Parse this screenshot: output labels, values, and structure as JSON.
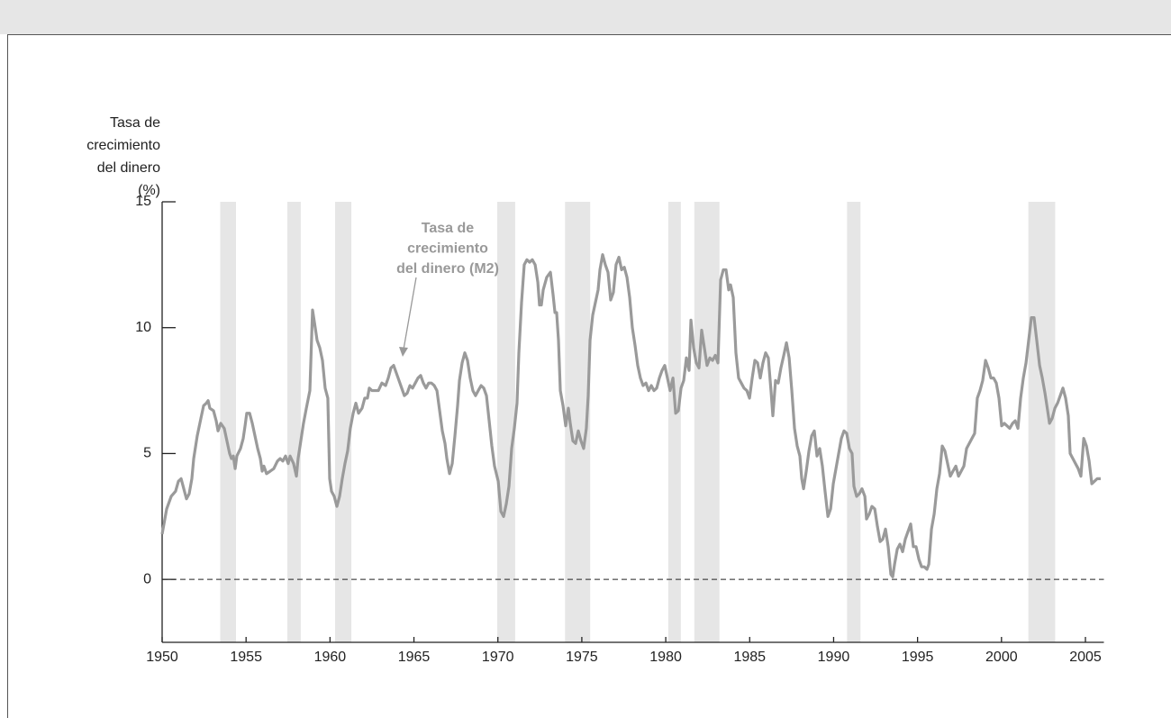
{
  "chart_data": {
    "type": "line",
    "ylabel": [
      "Tasa de",
      "crecimiento",
      "del dinero",
      "(%)"
    ],
    "annotation": [
      "Tasa de",
      "crecimiento",
      "del dinero (M2)"
    ],
    "color": "#9a9a9a",
    "shade_color": "#e6e6e6",
    "shaded_ranges": [
      [
        1953.46,
        1954.4
      ],
      [
        1957.46,
        1958.26
      ],
      [
        1960.3,
        1961.27
      ],
      [
        1969.96,
        1971.03
      ],
      [
        1974.0,
        1975.5
      ],
      [
        1980.15,
        1980.9
      ],
      [
        1981.7,
        1983.2
      ],
      [
        1990.8,
        1991.6
      ],
      [
        2001.6,
        2003.2
      ]
    ],
    "hline": 0,
    "xlim": [
      1950,
      2006.1
    ],
    "xticks": [
      1950,
      1955,
      1960,
      1965,
      1970,
      1975,
      1980,
      1985,
      1990,
      1995,
      2000,
      2005
    ],
    "ylim": [
      -2.5,
      15
    ],
    "yticks": [
      0,
      5,
      10,
      15
    ],
    "x": [
      1950.0,
      1950.27,
      1950.54,
      1950.8,
      1950.97,
      1951.13,
      1951.29,
      1951.45,
      1951.61,
      1951.77,
      1951.88,
      1952.09,
      1952.31,
      1952.47,
      1952.63,
      1952.74,
      1952.84,
      1953.06,
      1953.22,
      1953.33,
      1953.49,
      1953.7,
      1953.86,
      1954.02,
      1954.13,
      1954.24,
      1954.35,
      1954.45,
      1954.67,
      1954.83,
      1954.94,
      1955.04,
      1955.21,
      1955.37,
      1955.53,
      1955.69,
      1955.85,
      1955.96,
      1956.06,
      1956.22,
      1956.44,
      1956.65,
      1956.87,
      1957.03,
      1957.19,
      1957.35,
      1957.51,
      1957.62,
      1957.83,
      1958.0,
      1958.1,
      1958.26,
      1958.42,
      1958.59,
      1958.8,
      1958.96,
      1959.12,
      1959.23,
      1959.39,
      1959.55,
      1959.71,
      1959.87,
      1959.98,
      1960.09,
      1960.25,
      1960.41,
      1960.57,
      1960.73,
      1960.89,
      1961.05,
      1961.21,
      1961.38,
      1961.54,
      1961.7,
      1961.91,
      1962.07,
      1962.23,
      1962.34,
      1962.5,
      1962.72,
      1962.88,
      1963.09,
      1963.31,
      1963.47,
      1963.63,
      1963.79,
      1963.95,
      1964.11,
      1964.27,
      1964.43,
      1964.6,
      1964.76,
      1964.92,
      1965.08,
      1965.24,
      1965.4,
      1965.56,
      1965.72,
      1965.88,
      1966.04,
      1966.21,
      1966.37,
      1966.53,
      1966.69,
      1966.85,
      1966.96,
      1967.12,
      1967.28,
      1967.44,
      1967.6,
      1967.71,
      1967.87,
      1968.03,
      1968.19,
      1968.35,
      1968.51,
      1968.67,
      1968.83,
      1969.0,
      1969.16,
      1969.32,
      1969.48,
      1969.64,
      1969.8,
      1970.02,
      1970.18,
      1970.34,
      1970.5,
      1970.66,
      1970.82,
      1970.98,
      1971.14,
      1971.25,
      1971.41,
      1971.57,
      1971.73,
      1971.89,
      1972.05,
      1972.22,
      1972.38,
      1972.48,
      1972.59,
      1972.7,
      1972.91,
      1973.13,
      1973.29,
      1973.4,
      1973.5,
      1973.61,
      1973.72,
      1973.88,
      1974.04,
      1974.2,
      1974.31,
      1974.47,
      1974.63,
      1974.79,
      1974.95,
      1975.11,
      1975.27,
      1975.38,
      1975.49,
      1975.65,
      1975.81,
      1975.97,
      1976.08,
      1976.24,
      1976.4,
      1976.56,
      1976.72,
      1976.88,
      1977.04,
      1977.21,
      1977.37,
      1977.53,
      1977.69,
      1977.85,
      1978.01,
      1978.17,
      1978.33,
      1978.49,
      1978.65,
      1978.82,
      1978.98,
      1979.14,
      1979.3,
      1979.46,
      1979.62,
      1979.78,
      1979.94,
      1980.1,
      1980.26,
      1980.43,
      1980.59,
      1980.75,
      1980.91,
      1981.07,
      1981.23,
      1981.39,
      1981.5,
      1981.66,
      1981.82,
      1981.98,
      1982.14,
      1982.3,
      1982.46,
      1982.63,
      1982.79,
      1982.95,
      1983.11,
      1983.27,
      1983.43,
      1983.59,
      1983.75,
      1983.86,
      1984.02,
      1984.18,
      1984.34,
      1984.5,
      1984.66,
      1984.83,
      1984.99,
      1985.15,
      1985.31,
      1985.47,
      1985.63,
      1985.79,
      1985.95,
      1986.11,
      1986.27,
      1986.38,
      1986.54,
      1986.7,
      1986.86,
      1987.03,
      1987.19,
      1987.35,
      1987.51,
      1987.67,
      1987.83,
      1987.99,
      1988.1,
      1988.21,
      1988.37,
      1988.53,
      1988.69,
      1988.85,
      1989.01,
      1989.17,
      1989.33,
      1989.49,
      1989.66,
      1989.82,
      1989.98,
      1990.14,
      1990.3,
      1990.46,
      1990.62,
      1990.78,
      1990.94,
      1991.1,
      1991.21,
      1991.37,
      1991.53,
      1991.69,
      1991.86,
      1991.96,
      1992.12,
      1992.28,
      1992.45,
      1992.61,
      1992.77,
      1992.93,
      1993.09,
      1993.25,
      1993.41,
      1993.52,
      1993.63,
      1993.79,
      1993.95,
      1994.11,
      1994.27,
      1994.43,
      1994.59,
      1994.75,
      1994.91,
      1995.08,
      1995.24,
      1995.4,
      1995.56,
      1995.67,
      1995.83,
      1995.99,
      1996.15,
      1996.31,
      1996.47,
      1996.63,
      1996.79,
      1996.95,
      1997.11,
      1997.28,
      1997.44,
      1997.6,
      1997.76,
      1997.92,
      1998.08,
      1998.24,
      1998.4,
      1998.56,
      1998.72,
      1998.88,
      1999.05,
      1999.21,
      1999.37,
      1999.53,
      1999.69,
      1999.85,
      2000.01,
      2000.17,
      2000.33,
      2000.49,
      2000.66,
      2000.82,
      2000.98,
      2001.14,
      2001.3,
      2001.46,
      2001.62,
      2001.78,
      2001.94,
      2002.1,
      2002.27,
      2002.43,
      2002.59,
      2002.75,
      2002.86,
      2003.02,
      2003.18,
      2003.34,
      2003.5,
      2003.66,
      2003.82,
      2003.98,
      2004.09,
      2004.25,
      2004.41,
      2004.57,
      2004.73,
      2004.9,
      2005.06,
      2005.22,
      2005.38,
      2005.54,
      2005.7,
      2005.91
    ],
    "values": [
      1.8,
      2.8,
      3.3,
      3.5,
      3.9,
      4.0,
      3.6,
      3.2,
      3.4,
      4.0,
      4.8,
      5.7,
      6.4,
      6.9,
      7.0,
      7.1,
      6.8,
      6.7,
      6.3,
      5.9,
      6.2,
      6.0,
      5.5,
      5.0,
      4.8,
      4.9,
      4.4,
      4.9,
      5.2,
      5.6,
      6.1,
      6.6,
      6.6,
      6.2,
      5.7,
      5.2,
      4.8,
      4.3,
      4.5,
      4.2,
      4.3,
      4.4,
      4.7,
      4.8,
      4.7,
      4.9,
      4.6,
      4.9,
      4.6,
      4.1,
      4.8,
      5.5,
      6.2,
      6.8,
      7.5,
      10.7,
      10.0,
      9.5,
      9.2,
      8.7,
      7.6,
      7.2,
      4.0,
      3.5,
      3.3,
      2.9,
      3.3,
      4.0,
      4.6,
      5.1,
      6.0,
      6.6,
      7.0,
      6.6,
      6.8,
      7.2,
      7.2,
      7.6,
      7.5,
      7.5,
      7.5,
      7.8,
      7.7,
      8.0,
      8.4,
      8.5,
      8.2,
      7.9,
      7.6,
      7.3,
      7.4,
      7.7,
      7.6,
      7.8,
      8.0,
      8.1,
      7.8,
      7.6,
      7.8,
      7.8,
      7.7,
      7.5,
      6.7,
      5.9,
      5.4,
      4.8,
      4.2,
      4.6,
      5.7,
      6.9,
      7.9,
      8.6,
      9.0,
      8.7,
      8.0,
      7.5,
      7.3,
      7.5,
      7.7,
      7.6,
      7.3,
      6.3,
      5.3,
      4.5,
      3.9,
      2.7,
      2.5,
      3.0,
      3.7,
      5.2,
      6.0,
      7.0,
      9.0,
      11.0,
      12.5,
      12.7,
      12.6,
      12.7,
      12.5,
      11.8,
      10.9,
      10.9,
      11.5,
      12.0,
      12.2,
      11.3,
      10.6,
      10.6,
      9.5,
      7.5,
      6.9,
      6.1,
      6.8,
      6.2,
      5.5,
      5.4,
      5.9,
      5.5,
      5.2,
      6.0,
      7.3,
      9.5,
      10.5,
      11.0,
      11.5,
      12.3,
      12.9,
      12.5,
      12.2,
      11.1,
      11.4,
      12.5,
      12.8,
      12.3,
      12.4,
      12.0,
      11.2,
      10.0,
      9.3,
      8.5,
      8.0,
      7.7,
      7.8,
      7.5,
      7.7,
      7.5,
      7.6,
      8.0,
      8.3,
      8.5,
      8.0,
      7.5,
      8.0,
      6.6,
      6.7,
      7.6,
      7.9,
      8.8,
      8.3,
      10.3,
      9.2,
      8.6,
      8.4,
      9.9,
      9.2,
      8.5,
      8.8,
      8.7,
      8.9,
      8.6,
      11.9,
      12.3,
      12.3,
      11.5,
      11.7,
      11.2,
      9.0,
      8.0,
      7.8,
      7.6,
      7.5,
      7.2,
      8.0,
      8.7,
      8.6,
      8.0,
      8.6,
      9.0,
      8.8,
      7.5,
      6.5,
      7.9,
      7.8,
      8.4,
      8.9,
      9.4,
      8.8,
      7.5,
      6.0,
      5.3,
      4.9,
      4.0,
      3.6,
      4.3,
      5.1,
      5.7,
      5.9,
      4.9,
      5.2,
      4.5,
      3.5,
      2.5,
      2.8,
      3.8,
      4.4,
      5.0,
      5.6,
      5.9,
      5.8,
      5.2,
      5.0,
      3.7,
      3.3,
      3.4,
      3.6,
      3.3,
      2.4,
      2.6,
      2.9,
      2.8,
      2.1,
      1.5,
      1.6,
      2.0,
      1.3,
      0.2,
      0.1,
      0.6,
      1.2,
      1.4,
      1.1,
      1.6,
      1.9,
      2.2,
      1.3,
      1.3,
      0.8,
      0.5,
      0.5,
      0.4,
      0.6,
      2.0,
      2.6,
      3.6,
      4.2,
      5.3,
      5.1,
      4.6,
      4.1,
      4.3,
      4.5,
      4.1,
      4.3,
      4.5,
      5.2,
      5.4,
      5.6,
      5.8,
      7.2,
      7.5,
      7.9,
      8.7,
      8.4,
      8.0,
      8.0,
      7.8,
      7.2,
      6.1,
      6.2,
      6.1,
      6.0,
      6.2,
      6.3,
      6.0,
      7.2,
      8.0,
      8.6,
      9.5,
      10.4,
      10.4,
      9.5,
      8.5,
      8.0,
      7.4,
      6.7,
      6.2,
      6.4,
      6.8,
      7.0,
      7.3,
      7.6,
      7.2,
      6.5,
      5.0,
      4.8,
      4.6,
      4.4,
      4.1,
      5.6,
      5.3,
      4.7,
      3.8,
      3.9,
      4.0,
      4.0
    ]
  }
}
